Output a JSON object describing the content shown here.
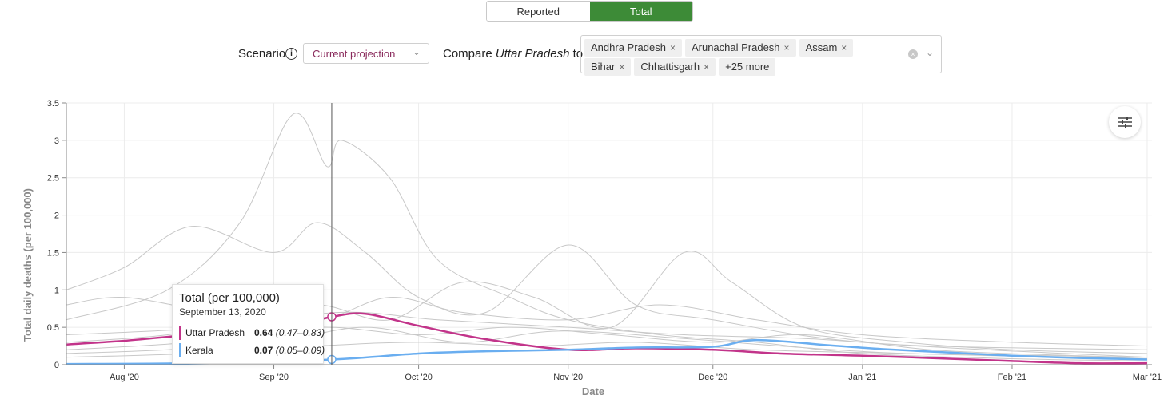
{
  "toggle": {
    "options": [
      "Reported",
      "Total"
    ],
    "active": "Total"
  },
  "scenario": {
    "label": "Scenario",
    "value": "Current projection"
  },
  "compare": {
    "prefix": "Compare",
    "state": "Uttar Pradesh",
    "suffix": "to",
    "chips": [
      "Andhra Pradesh",
      "Arunachal Pradesh",
      "Assam",
      "Bihar",
      "Chhattisgarh",
      "+25 more"
    ]
  },
  "tooltip": {
    "title": "Total (per 100,000)",
    "date": "September 13, 2020",
    "rows": [
      {
        "name": "Uttar Pradesh",
        "value": "0.64",
        "range": "(0.47–0.83)",
        "color": "#c2348a"
      },
      {
        "name": "Kerala",
        "value": "0.07",
        "range": "(0.05–0.09)",
        "color": "#6aaef0"
      }
    ]
  },
  "chart_data": {
    "type": "line",
    "xlabel": "Date",
    "ylabel": "Total daily deaths (per 100,000)",
    "ylim": [
      0,
      3.5
    ],
    "xlim": [
      "2020-07-20",
      "2021-03-02"
    ],
    "yticks": [
      "0",
      "0.5",
      "1",
      "1.5",
      "2",
      "2.5",
      "3",
      "3.5"
    ],
    "xticks": [
      {
        "label": "Aug '20",
        "date": "2020-08-01"
      },
      {
        "label": "Sep '20",
        "date": "2020-09-01"
      },
      {
        "label": "Oct '20",
        "date": "2020-10-01"
      },
      {
        "label": "Nov '20",
        "date": "2020-11-01"
      },
      {
        "label": "Dec '20",
        "date": "2020-12-01"
      },
      {
        "label": "Jan '21",
        "date": "2021-01-01"
      },
      {
        "label": "Feb '21",
        "date": "2021-02-01"
      },
      {
        "label": "Mar '21",
        "date": "2021-03-01"
      }
    ],
    "grid": true,
    "highlight_date": "2020-09-13",
    "series": [
      {
        "name": "Uttar Pradesh",
        "color": "#c2348a",
        "x": [
          "2020-07-20",
          "2020-08-01",
          "2020-08-15",
          "2020-09-01",
          "2020-09-13",
          "2020-09-20",
          "2020-10-01",
          "2020-10-15",
          "2020-11-01",
          "2020-11-15",
          "2020-12-01",
          "2020-12-15",
          "2021-01-01",
          "2021-01-15",
          "2021-02-01",
          "2021-02-15",
          "2021-03-01"
        ],
        "values": [
          0.27,
          0.32,
          0.4,
          0.47,
          0.64,
          0.68,
          0.52,
          0.34,
          0.2,
          0.22,
          0.2,
          0.15,
          0.12,
          0.09,
          0.05,
          0.02,
          0.02
        ]
      },
      {
        "name": "Kerala",
        "color": "#6aaef0",
        "x": [
          "2020-07-20",
          "2020-08-15",
          "2020-09-13",
          "2020-10-01",
          "2020-10-15",
          "2020-11-01",
          "2020-11-15",
          "2020-12-01",
          "2020-12-10",
          "2020-12-25",
          "2021-01-05",
          "2021-01-20",
          "2021-02-01",
          "2021-02-15",
          "2021-03-01"
        ],
        "values": [
          0.01,
          0.02,
          0.07,
          0.15,
          0.18,
          0.2,
          0.23,
          0.24,
          0.33,
          0.26,
          0.21,
          0.16,
          0.12,
          0.09,
          0.07
        ]
      },
      {
        "color": "#c8c8c8",
        "x": [
          "2020-07-20",
          "2020-08-10",
          "2020-08-25",
          "2020-09-05",
          "2020-09-12",
          "2020-09-15",
          "2020-09-25",
          "2020-10-05",
          "2020-10-20",
          "2020-11-01",
          "2020-11-20",
          "2020-12-10",
          "2021-01-01",
          "2021-02-01",
          "2021-03-01"
        ],
        "values": [
          0.6,
          1.0,
          1.9,
          3.35,
          2.65,
          3.0,
          2.5,
          1.4,
          0.9,
          0.6,
          0.4,
          0.3,
          0.15,
          0.08,
          0.05
        ]
      },
      {
        "color": "#c8c8c8",
        "x": [
          "2020-07-20",
          "2020-08-01",
          "2020-08-15",
          "2020-09-01",
          "2020-09-10",
          "2020-09-20",
          "2020-10-01",
          "2020-10-15",
          "2020-11-01",
          "2020-11-15",
          "2020-12-01",
          "2021-01-01",
          "2021-03-01"
        ],
        "values": [
          1.0,
          1.3,
          1.85,
          1.5,
          1.9,
          1.5,
          0.9,
          0.7,
          1.6,
          0.8,
          0.6,
          0.3,
          0.1
        ]
      },
      {
        "color": "#c8c8c8",
        "x": [
          "2020-07-20",
          "2020-08-10",
          "2020-08-25",
          "2020-09-10",
          "2020-09-25",
          "2020-10-10",
          "2020-10-25",
          "2020-11-10",
          "2020-11-25",
          "2020-12-05",
          "2020-12-20",
          "2021-01-10",
          "2021-02-01",
          "2021-03-01"
        ],
        "values": [
          0.3,
          0.4,
          0.6,
          0.8,
          0.6,
          1.1,
          0.9,
          0.5,
          1.5,
          1.1,
          0.5,
          0.3,
          0.2,
          0.15
        ]
      },
      {
        "color": "#c8c8c8",
        "x": [
          "2020-07-20",
          "2020-08-01",
          "2020-08-20",
          "2020-09-10",
          "2020-09-25",
          "2020-10-10",
          "2020-11-01",
          "2020-11-20",
          "2020-12-10",
          "2021-01-01",
          "2021-02-01",
          "2021-03-01"
        ],
        "values": [
          0.8,
          0.9,
          0.7,
          0.6,
          0.9,
          0.7,
          0.6,
          0.8,
          0.6,
          0.4,
          0.3,
          0.25
        ]
      },
      {
        "color": "#c8c8c8",
        "x": [
          "2020-07-20",
          "2020-08-15",
          "2020-09-10",
          "2020-10-01",
          "2020-10-20",
          "2020-11-10",
          "2020-12-01",
          "2020-12-20",
          "2021-01-15",
          "2021-02-15",
          "2021-03-01"
        ],
        "values": [
          0.2,
          0.3,
          0.5,
          0.4,
          0.5,
          0.4,
          0.3,
          0.4,
          0.2,
          0.12,
          0.1
        ]
      },
      {
        "color": "#c8c8c8",
        "x": [
          "2020-07-20",
          "2020-08-10",
          "2020-09-01",
          "2020-09-20",
          "2020-10-10",
          "2020-10-30",
          "2020-11-25",
          "2020-12-15",
          "2021-01-10",
          "2021-02-10",
          "2021-03-01"
        ],
        "values": [
          0.15,
          0.2,
          0.3,
          0.5,
          0.3,
          0.45,
          0.35,
          0.25,
          0.15,
          0.12,
          0.08
        ]
      },
      {
        "color": "#c8c8c8",
        "x": [
          "2020-07-20",
          "2020-08-20",
          "2020-09-15",
          "2020-10-05",
          "2020-11-01",
          "2020-11-25",
          "2020-12-20",
          "2021-01-15",
          "2021-03-01"
        ],
        "values": [
          0.4,
          0.5,
          0.7,
          0.6,
          0.5,
          0.4,
          0.35,
          0.25,
          0.2
        ]
      },
      {
        "color": "#c8c8c8",
        "x": [
          "2020-07-20",
          "2020-08-15",
          "2020-09-10",
          "2020-10-01",
          "2020-10-25",
          "2020-11-15",
          "2020-12-10",
          "2021-01-10",
          "2021-02-10",
          "2021-03-01"
        ],
        "values": [
          0.1,
          0.15,
          0.25,
          0.3,
          0.25,
          0.3,
          0.2,
          0.15,
          0.1,
          0.08
        ]
      }
    ]
  }
}
